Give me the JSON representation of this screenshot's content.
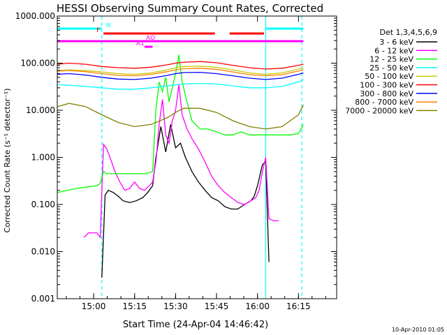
{
  "chart_data": {
    "type": "line",
    "title": "HESSI Observing Summary Count Rates, Corrected",
    "ylabel": "Corrected Count Rate (s⁻¹ detector⁻¹)",
    "xlabel": "Start Time (24-Apr-04 14:46:42)",
    "footer": "10-Apr-2010 01:05",
    "yscale": "log",
    "ylim": [
      0.001,
      1000
    ],
    "xlim": [
      14.778,
      16.483
    ],
    "x_unit": "hours UT",
    "x_ticks": [
      {
        "value": 15.0,
        "label": "15:00"
      },
      {
        "value": 15.25,
        "label": "15:15"
      },
      {
        "value": 15.5,
        "label": "15:30"
      },
      {
        "value": 15.75,
        "label": "15:45"
      },
      {
        "value": 16.0,
        "label": "16:00"
      },
      {
        "value": 16.25,
        "label": "16:15"
      }
    ],
    "y_ticks": [
      {
        "value": 0.001,
        "label": "0.001"
      },
      {
        "value": 0.01,
        "label": "0.010"
      },
      {
        "value": 0.1,
        "label": "0.100"
      },
      {
        "value": 1,
        "label": "1.000"
      },
      {
        "value": 10,
        "label": "10.000"
      },
      {
        "value": 100,
        "label": "100.000"
      },
      {
        "value": 1000,
        "label": "1000.000"
      }
    ],
    "legend_title": "Det 1,3,4,5,6,9",
    "legend_position": "right",
    "series": [
      {
        "name": "3 - 6 keV",
        "color": "#000000",
        "x": [
          14.78,
          14.85,
          14.92,
          14.98,
          15.03,
          15.05,
          15.07,
          15.09,
          15.12,
          15.15,
          15.18,
          15.22,
          15.26,
          15.3,
          15.33,
          15.36,
          15.38,
          15.41,
          15.44,
          15.47,
          15.5,
          15.53,
          15.56,
          15.6,
          15.64,
          15.68,
          15.72,
          15.76,
          15.8,
          15.84,
          15.88,
          15.92,
          15.96,
          15.98,
          16.0,
          16.02,
          16.03,
          16.05,
          16.07
        ],
        "y": [
          null,
          null,
          null,
          null,
          null,
          0.0028,
          0.16,
          0.2,
          0.18,
          0.15,
          0.12,
          0.11,
          0.12,
          0.14,
          0.18,
          0.25,
          1.0,
          4.5,
          1.3,
          5.0,
          1.6,
          2.0,
          1.0,
          0.5,
          0.3,
          0.2,
          0.14,
          0.12,
          0.09,
          0.08,
          0.08,
          0.1,
          0.12,
          0.15,
          0.25,
          0.5,
          0.7,
          0.8,
          0.006
        ]
      },
      {
        "name": "6 - 12 keV",
        "color": "#ff00ff",
        "x": [
          14.94,
          14.97,
          15.02,
          15.04,
          15.06,
          15.08,
          15.1,
          15.13,
          15.16,
          15.19,
          15.22,
          15.25,
          15.28,
          15.31,
          15.34,
          15.36,
          15.38,
          15.4,
          15.42,
          15.44,
          15.46,
          15.48,
          15.5,
          15.52,
          15.54,
          15.57,
          15.6,
          15.64,
          15.68,
          15.72,
          15.76,
          15.8,
          15.84,
          15.88,
          15.92,
          15.96,
          15.99,
          16.01,
          16.03,
          16.05,
          16.07,
          16.1,
          16.13
        ],
        "y": [
          0.02,
          0.025,
          0.025,
          0.02,
          1.9,
          1.5,
          1.0,
          0.5,
          0.3,
          0.2,
          0.22,
          0.3,
          0.22,
          0.2,
          0.25,
          0.3,
          0.8,
          5.0,
          17.0,
          3.0,
          2.0,
          6.0,
          10.0,
          35.0,
          8.0,
          4.0,
          2.5,
          1.5,
          0.8,
          0.4,
          0.25,
          0.18,
          0.14,
          0.11,
          0.1,
          0.12,
          0.14,
          0.2,
          0.5,
          1.0,
          0.05,
          0.045,
          0.045
        ]
      },
      {
        "name": "12 - 25 keV",
        "color": "#00ff00",
        "x": [
          14.78,
          14.9,
          15.02,
          15.04,
          15.06,
          15.08,
          15.15,
          15.25,
          15.32,
          15.36,
          15.38,
          15.4,
          15.42,
          15.44,
          15.46,
          15.48,
          15.5,
          15.52,
          15.54,
          15.57,
          15.6,
          15.65,
          15.7,
          15.75,
          15.8,
          15.85,
          15.9,
          15.95,
          16.0,
          16.05,
          16.1,
          16.15,
          16.2,
          16.25,
          16.28
        ],
        "y": [
          0.18,
          0.22,
          0.25,
          0.28,
          0.5,
          0.45,
          0.45,
          0.45,
          0.45,
          0.5,
          10.0,
          40.0,
          25.0,
          50.0,
          15.0,
          30.0,
          60.0,
          150.0,
          40.0,
          15.0,
          6.0,
          4.0,
          4.0,
          3.5,
          3.0,
          3.0,
          3.5,
          3.0,
          3.0,
          3.0,
          3.0,
          3.0,
          3.0,
          3.2,
          5.0
        ]
      },
      {
        "name": "25 - 50 keV",
        "color": "#00ffff",
        "x": [
          14.78,
          14.85,
          14.95,
          15.05,
          15.15,
          15.25,
          15.35,
          15.45,
          15.5,
          15.55,
          15.65,
          15.75,
          15.85,
          15.95,
          16.05,
          16.15,
          16.25,
          16.28
        ],
        "y": [
          35,
          34,
          32,
          30,
          28,
          28,
          30,
          33,
          35,
          36,
          37,
          36,
          33,
          30,
          30,
          32,
          40,
          45
        ]
      },
      {
        "name": "50 - 100 keV",
        "color": "#c8c800",
        "x": [
          14.78,
          14.85,
          14.95,
          15.05,
          15.15,
          15.25,
          15.35,
          15.45,
          15.5,
          15.55,
          15.65,
          15.75,
          15.85,
          15.95,
          16.05,
          16.15,
          16.25,
          16.28
        ],
        "y": [
          70,
          72,
          70,
          65,
          60,
          58,
          62,
          72,
          80,
          85,
          86,
          82,
          72,
          62,
          58,
          62,
          75,
          80
        ]
      },
      {
        "name": "100 - 300 keV",
        "color": "#ff0000",
        "x": [
          14.78,
          14.85,
          14.95,
          15.05,
          15.15,
          15.25,
          15.35,
          15.45,
          15.5,
          15.55,
          15.65,
          15.75,
          15.85,
          15.95,
          16.05,
          16.15,
          16.25,
          16.28
        ],
        "y": [
          95,
          100,
          95,
          85,
          80,
          78,
          82,
          92,
          100,
          105,
          108,
          102,
          90,
          80,
          75,
          78,
          90,
          95
        ]
      },
      {
        "name": "300 - 800 keV",
        "color": "#0000ff",
        "x": [
          14.78,
          14.85,
          14.95,
          15.05,
          15.15,
          15.25,
          15.35,
          15.45,
          15.5,
          15.55,
          15.65,
          15.75,
          15.85,
          15.95,
          16.05,
          16.15,
          16.25,
          16.28
        ],
        "y": [
          58,
          60,
          56,
          50,
          46,
          45,
          48,
          55,
          60,
          63,
          64,
          60,
          54,
          48,
          45,
          48,
          58,
          62
        ]
      },
      {
        "name": "800 - 7000 keV",
        "color": "#ff8000",
        "x": [
          14.78,
          14.85,
          14.95,
          15.05,
          15.15,
          15.25,
          15.35,
          15.45,
          15.5,
          15.55,
          15.65,
          15.75,
          15.85,
          15.95,
          16.05,
          16.15,
          16.25,
          16.28
        ],
        "y": [
          68,
          70,
          66,
          60,
          55,
          54,
          58,
          66,
          72,
          76,
          78,
          74,
          65,
          57,
          54,
          57,
          68,
          72
        ]
      },
      {
        "name": "7000 - 20000 keV",
        "color": "#808000",
        "x": [
          14.78,
          14.85,
          14.95,
          15.05,
          15.15,
          15.25,
          15.35,
          15.45,
          15.5,
          15.55,
          15.65,
          15.75,
          15.85,
          15.95,
          16.05,
          16.15,
          16.25,
          16.28
        ],
        "y": [
          12,
          14,
          12,
          8,
          5.5,
          4.5,
          5,
          7,
          9,
          11,
          11,
          9,
          6,
          4.5,
          4,
          4.5,
          8,
          13
        ]
      }
    ],
    "flag_bars": [
      {
        "label": "N",
        "color": "#00ffff",
        "row": 1,
        "segments": [
          [
            14.78,
            15.05
          ],
          [
            16.05,
            16.28
          ]
        ]
      },
      {
        "label": "F",
        "color": "#ff0000",
        "row": 2,
        "segments": [
          [
            15.06,
            15.74
          ],
          [
            15.83,
            16.04
          ]
        ]
      },
      {
        "label": "AO",
        "color": "#ff00ff",
        "row": 3,
        "segments": [
          [
            14.78,
            16.28
          ]
        ]
      },
      {
        "label": "A1",
        "color": "#ff00ff",
        "row": 4,
        "segments": [
          [
            15.31,
            15.36
          ]
        ]
      }
    ],
    "vertical_lines": [
      {
        "x": 15.05,
        "color": "#00ffff",
        "style": "dashed"
      },
      {
        "x": 16.05,
        "color": "#00ffff",
        "style": "solid"
      },
      {
        "x": 16.27,
        "color": "#00ffff",
        "style": "dashed"
      }
    ]
  }
}
